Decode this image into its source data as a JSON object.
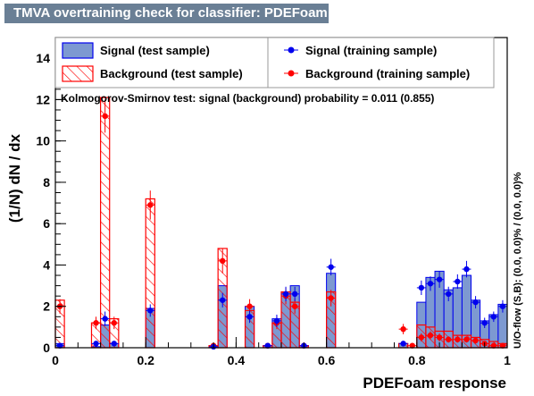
{
  "title": "TMVA overtraining check for classifier: PDEFoam",
  "chart_data": {
    "type": "bar",
    "xlabel": "PDEFoam response",
    "ylabel": "(1/N) dN / dx",
    "xlim": [
      0,
      1
    ],
    "ylim": [
      0,
      15
    ],
    "x_ticks": [
      "0",
      "0.2",
      "0.4",
      "0.6",
      "0.8",
      "1"
    ],
    "y_ticks": [
      "0",
      "2",
      "4",
      "6",
      "8",
      "10",
      "12",
      "14"
    ],
    "annotation": "Kolmogorov-Smirnov test: signal (background) probability = 0.011 (0.855)",
    "side_label": "U/O-flow (S,B): (0.0, 0.0)% / (0.0, 0.0)%",
    "colors": {
      "signal_fill": "#7d99d1",
      "signal_line": "#0000ee",
      "background": "#ff0000",
      "frame": "#000000"
    },
    "legend": [
      {
        "label": "Signal (test sample)",
        "style": "signal-fill"
      },
      {
        "label": "Background (test sample)",
        "style": "background-hatch"
      },
      {
        "label": "Signal (training sample)",
        "style": "signal-marker"
      },
      {
        "label": "Background (training sample)",
        "style": "background-marker"
      }
    ],
    "series": [
      {
        "style": "signal-fill",
        "x_bins": [
          [
            0.0,
            0.02
          ],
          [
            0.08,
            0.1
          ],
          [
            0.1,
            0.12
          ],
          [
            0.12,
            0.14
          ],
          [
            0.2,
            0.22
          ],
          [
            0.34,
            0.36
          ],
          [
            0.36,
            0.38
          ],
          [
            0.42,
            0.44
          ],
          [
            0.46,
            0.48
          ],
          [
            0.48,
            0.5
          ],
          [
            0.5,
            0.52
          ],
          [
            0.52,
            0.54
          ],
          [
            0.54,
            0.56
          ],
          [
            0.6,
            0.62
          ],
          [
            0.76,
            0.78
          ],
          [
            0.8,
            0.82
          ],
          [
            0.82,
            0.84
          ],
          [
            0.84,
            0.86
          ],
          [
            0.86,
            0.88
          ],
          [
            0.88,
            0.9
          ],
          [
            0.9,
            0.92
          ],
          [
            0.92,
            0.94
          ],
          [
            0.94,
            0.96
          ],
          [
            0.96,
            0.98
          ],
          [
            0.98,
            1.0
          ]
        ],
        "values": [
          0.2,
          0.05,
          1.1,
          0.2,
          1.9,
          0.1,
          3.0,
          2.0,
          0.1,
          1.4,
          2.7,
          3.0,
          0.1,
          3.6,
          0.2,
          2.2,
          3.4,
          3.7,
          2.8,
          2.9,
          3.5,
          2.3,
          1.3,
          1.6,
          2.1
        ]
      },
      {
        "style": "background-hatch",
        "x_bins": [
          [
            0.0,
            0.02
          ],
          [
            0.08,
            0.1
          ],
          [
            0.1,
            0.12
          ],
          [
            0.12,
            0.14
          ],
          [
            0.2,
            0.22
          ],
          [
            0.34,
            0.36
          ],
          [
            0.36,
            0.38
          ],
          [
            0.42,
            0.44
          ],
          [
            0.46,
            0.48
          ],
          [
            0.48,
            0.5
          ],
          [
            0.5,
            0.52
          ],
          [
            0.52,
            0.54
          ],
          [
            0.54,
            0.56
          ],
          [
            0.6,
            0.62
          ],
          [
            0.76,
            0.78
          ],
          [
            0.8,
            0.82
          ],
          [
            0.82,
            0.84
          ],
          [
            0.84,
            0.86
          ],
          [
            0.86,
            0.88
          ],
          [
            0.88,
            0.9
          ],
          [
            0.9,
            0.92
          ],
          [
            0.92,
            0.94
          ],
          [
            0.94,
            0.96
          ],
          [
            0.96,
            0.98
          ],
          [
            0.98,
            1.0
          ]
        ],
        "values": [
          2.3,
          1.2,
          12.1,
          1.4,
          7.2,
          0.1,
          4.8,
          1.8,
          0.1,
          1.2,
          2.7,
          2.2,
          0.1,
          2.7,
          0.2,
          1.1,
          1.0,
          0.8,
          0.8,
          0.6,
          0.6,
          0.5,
          0.4,
          0.3,
          0.2
        ]
      },
      {
        "style": "signal-marker",
        "x": [
          0.01,
          0.09,
          0.11,
          0.13,
          0.21,
          0.35,
          0.37,
          0.43,
          0.47,
          0.49,
          0.51,
          0.53,
          0.55,
          0.61,
          0.77,
          0.81,
          0.83,
          0.85,
          0.87,
          0.89,
          0.91,
          0.93,
          0.95,
          0.97,
          0.99
        ],
        "y": [
          0.1,
          0.2,
          1.4,
          0.2,
          1.8,
          0.05,
          2.3,
          1.5,
          0.1,
          1.3,
          2.6,
          2.6,
          0.1,
          3.9,
          0.2,
          2.9,
          3.1,
          3.3,
          2.6,
          3.2,
          3.8,
          2.2,
          1.2,
          1.5,
          2.0
        ],
        "err": [
          0.1,
          0.1,
          0.35,
          0.1,
          0.3,
          0.05,
          0.35,
          0.3,
          0.1,
          0.3,
          0.35,
          0.35,
          0.1,
          0.4,
          0.1,
          0.35,
          0.35,
          0.4,
          0.35,
          0.35,
          0.4,
          0.3,
          0.25,
          0.25,
          0.3
        ]
      },
      {
        "style": "background-marker",
        "x": [
          0.01,
          0.09,
          0.11,
          0.13,
          0.21,
          0.35,
          0.37,
          0.43,
          0.47,
          0.49,
          0.51,
          0.53,
          0.55,
          0.61,
          0.77,
          0.79,
          0.81,
          0.83,
          0.85,
          0.87,
          0.89,
          0.91,
          0.93,
          0.95,
          0.97,
          0.99
        ],
        "y": [
          2.0,
          1.2,
          11.2,
          1.2,
          6.9,
          0.1,
          4.2,
          2.0,
          0.1,
          1.2,
          2.5,
          2.0,
          0.1,
          2.4,
          0.9,
          0.1,
          0.5,
          0.6,
          0.5,
          0.4,
          0.4,
          0.4,
          0.35,
          0.2,
          0.1,
          0.1
        ],
        "err": [
          0.35,
          0.3,
          0.8,
          0.3,
          0.7,
          0.05,
          0.6,
          0.35,
          0.05,
          0.3,
          0.4,
          0.35,
          0.05,
          0.4,
          0.25,
          0.05,
          0.2,
          0.2,
          0.2,
          0.15,
          0.15,
          0.15,
          0.15,
          0.1,
          0.05,
          0.05
        ]
      }
    ]
  }
}
